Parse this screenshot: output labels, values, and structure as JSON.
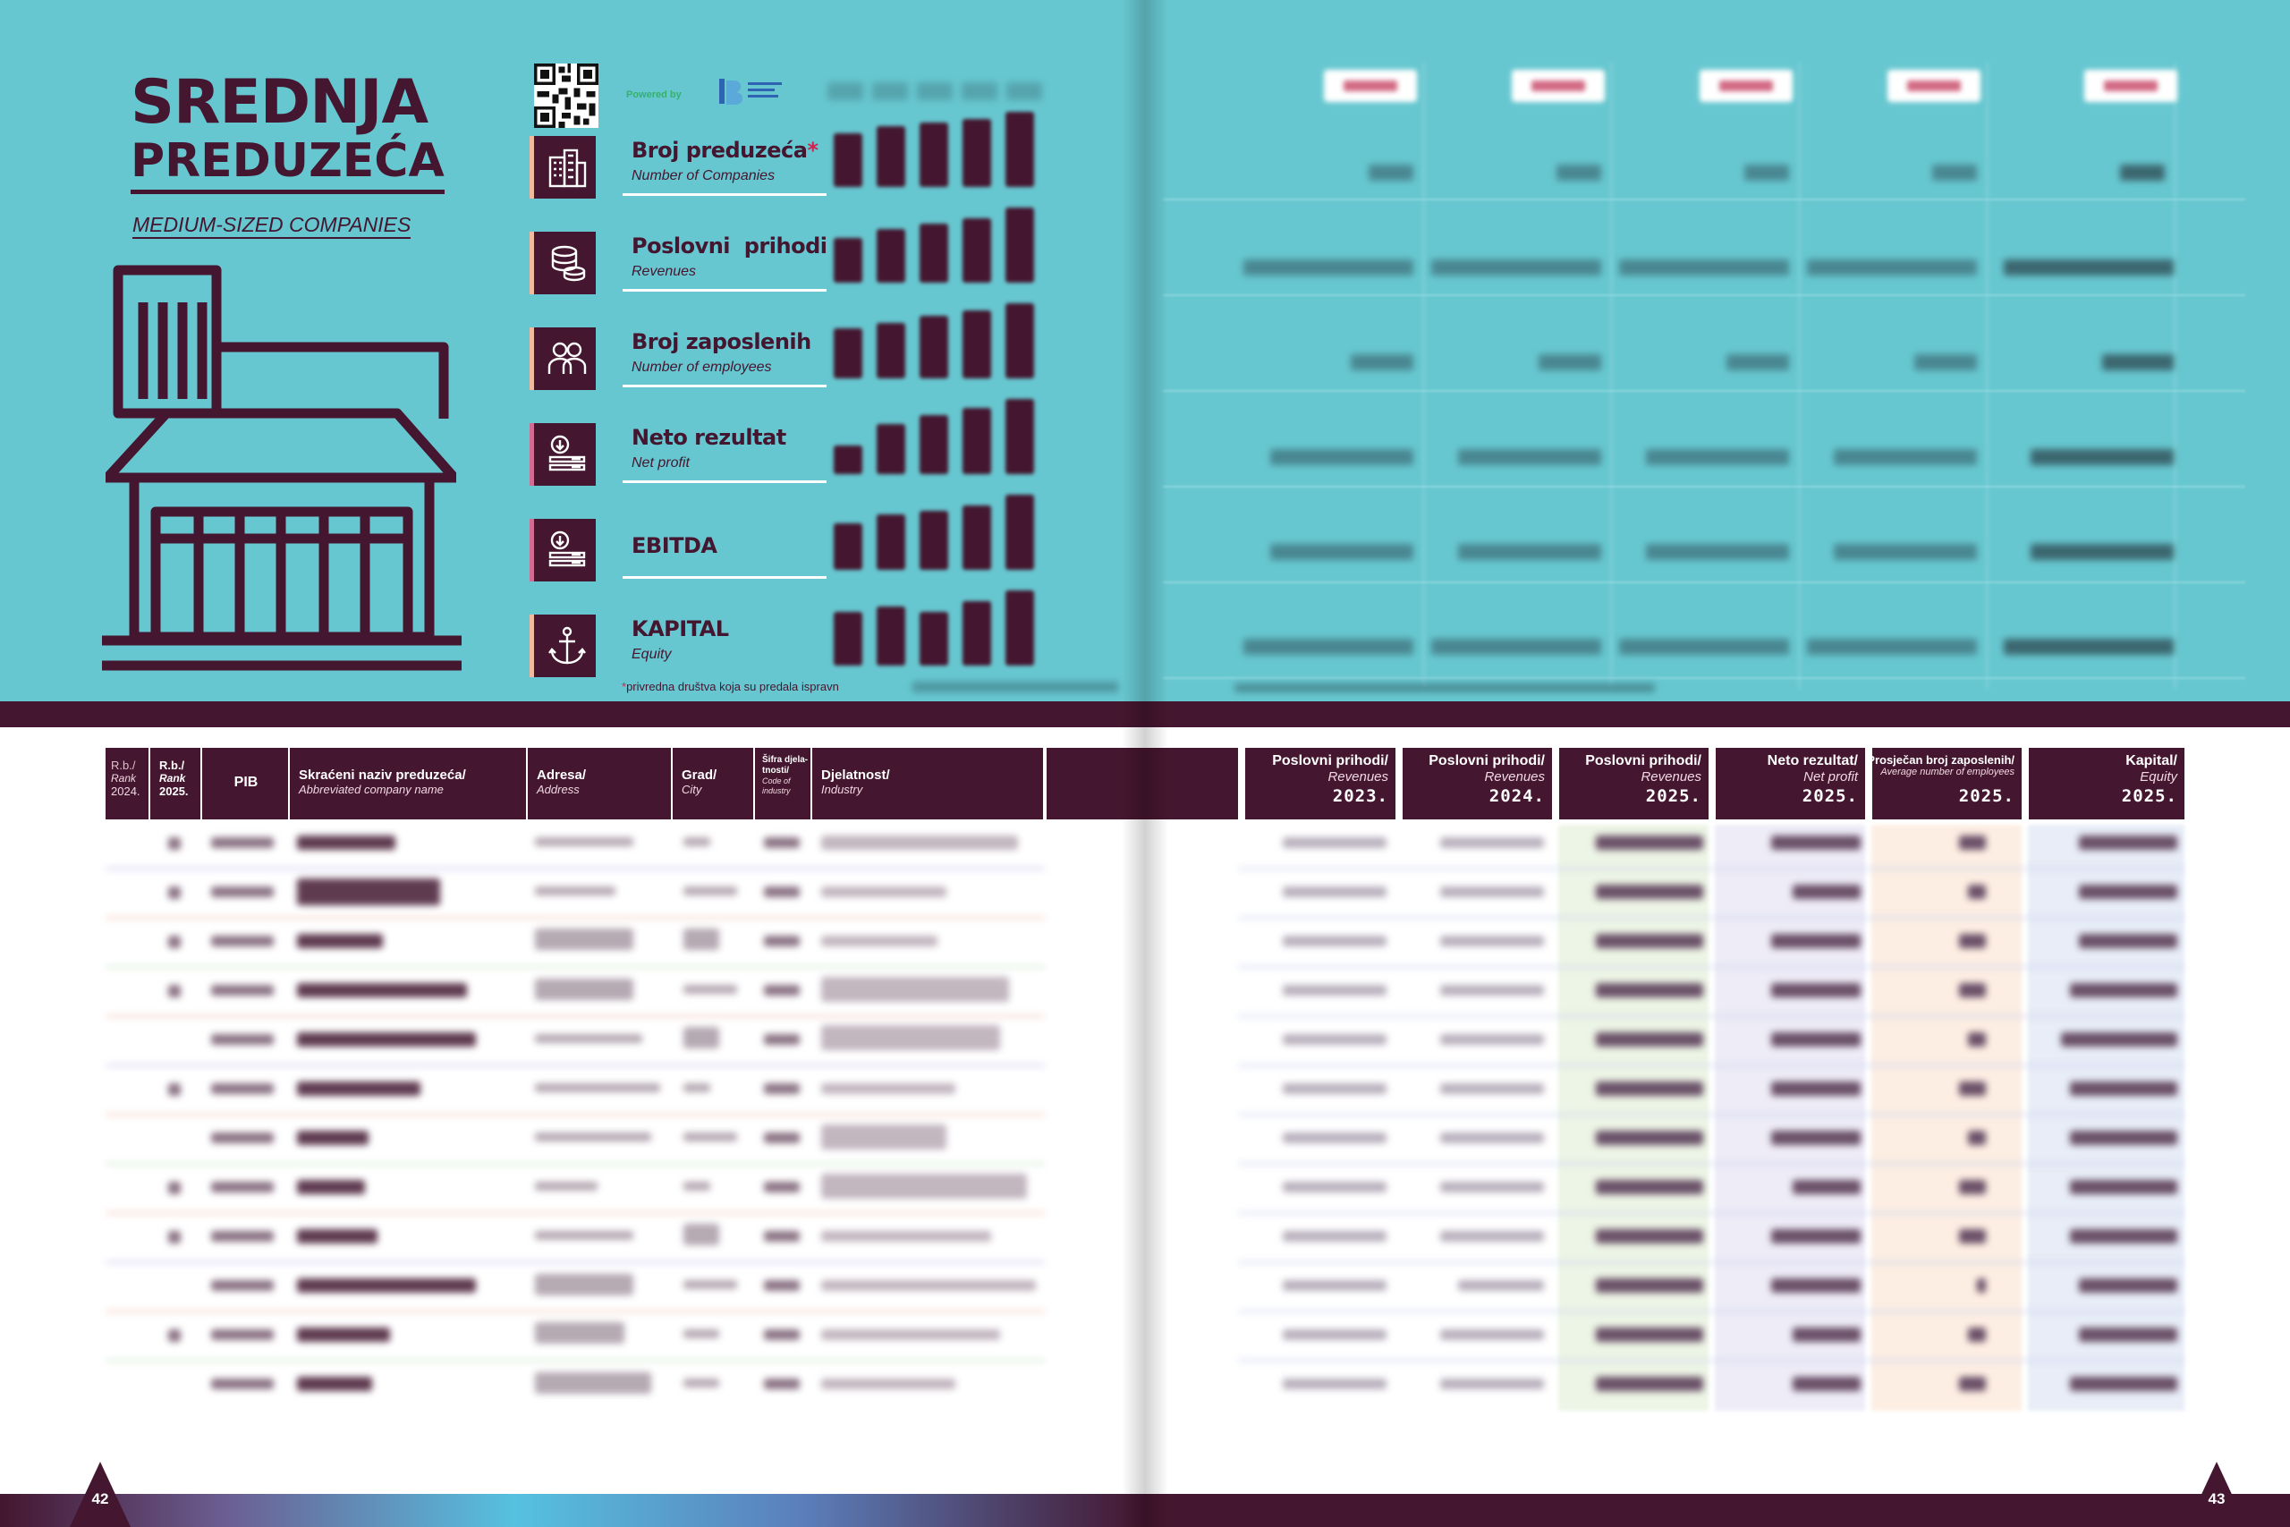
{
  "left_page": {
    "title_line1": "SREDNJA",
    "title_line2": "PREDUZEĆA",
    "title_en": "MEDIUM-SIZED COMPANIES",
    "powered_by": "Powered by",
    "metrics": [
      {
        "label": "Broj preduzeća",
        "asterisk": "*",
        "en": "Number of Companies",
        "icon": "buildings-icon"
      },
      {
        "label": "Poslovni  prihodi",
        "en": "Revenues",
        "icon": "coins-stack-icon"
      },
      {
        "label": "Broj zaposlenih",
        "en": "Number of employees",
        "icon": "employees-icon"
      },
      {
        "label": "Neto rezultat",
        "en": "Net profit",
        "icon": "download-stack-icon"
      },
      {
        "label": "EBITDA",
        "en": "",
        "icon": "download-stack-icon"
      },
      {
        "label": "KAPITAL",
        "en": "Equity",
        "icon": "anchor-icon"
      }
    ],
    "footnote_asterisk": "*",
    "footnote": "privredna društva koja su predala ispravn",
    "table_headers": {
      "rank_prev": {
        "sr": "R.b./",
        "en": "Rank",
        "year": "2024."
      },
      "rank_curr": {
        "sr": "R.b./",
        "en": "Rank",
        "year": "2025."
      },
      "pib": "PIB",
      "name": {
        "sr": "Skraćeni naziv preduzeća/",
        "en": "Abbreviated company name"
      },
      "address": {
        "sr": "Adresa/",
        "en": "Address"
      },
      "city": {
        "sr": "Grad/",
        "en": "City"
      },
      "code": {
        "sr": "Šifra djela-tnosti/",
        "en": "Code of industry"
      },
      "industry": {
        "sr": "Djelatnost/",
        "en": "Industry"
      }
    },
    "page_number": "42"
  },
  "right_page": {
    "table_headers": [
      {
        "sr": "Poslovni prihodi/",
        "en": "Revenues",
        "year": "2023."
      },
      {
        "sr": "Poslovni prihodi/",
        "en": "Revenues",
        "year": "2024."
      },
      {
        "sr": "Poslovni prihodi/",
        "en": "Revenues",
        "year": "2025."
      },
      {
        "sr": "Neto rezultat/",
        "en": "Net profit",
        "year": "2025."
      },
      {
        "sr": "Prosječan broj zaposlenih/",
        "en": "Average number of employees",
        "year": "2025."
      },
      {
        "sr": "Kapital/",
        "en": "Equity",
        "year": "2025."
      }
    ],
    "page_number": "43"
  },
  "colors": {
    "teal": "#67c7d0",
    "plum": "#44162f",
    "accent_red": "#d1224e",
    "accent_green": "#36b06e"
  }
}
